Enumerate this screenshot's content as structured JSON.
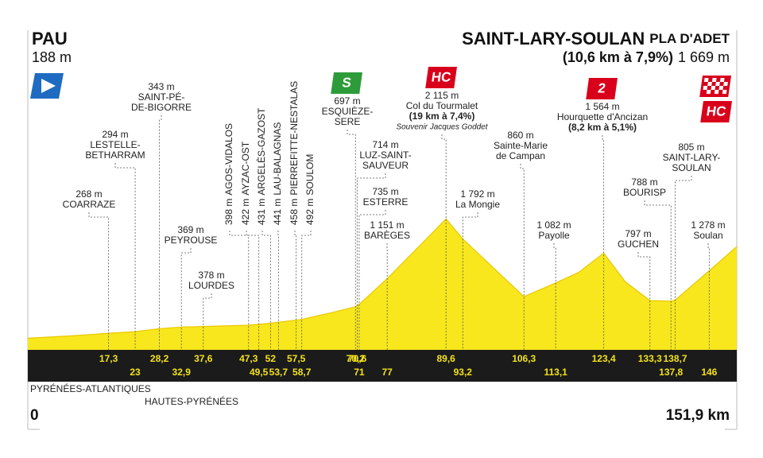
{
  "chart_data": {
    "type": "area",
    "color": "#f8e71c",
    "start": {
      "name": "PAU",
      "altitude": 188,
      "altitude_label": "188 m"
    },
    "finish": {
      "name": "SAINT-LARY-SOULAN",
      "place": "PLA D'ADET",
      "climb": "(10,6 km à 7,9%)",
      "altitude": 1669,
      "altitude_label": "1 669 m",
      "badge": "HC"
    },
    "start_km": {
      "value": 0,
      "label": "0"
    },
    "distance": {
      "value": 151.9,
      "label": "151,9 km"
    },
    "departments": [
      "PYRÉNÉES-ATLANTIQUES",
      "HAUTES-PYRÉNÉES"
    ],
    "profile": {
      "x": [
        0,
        10,
        17.3,
        23,
        28.2,
        32.9,
        37.6,
        47.3,
        52,
        58.7,
        65,
        70.2,
        71,
        77,
        89.6,
        93.2,
        106.3,
        113.1,
        118,
        123.4,
        128,
        133.3,
        137.8,
        138.7,
        146,
        151.9
      ],
      "values": [
        188,
        230,
        268,
        294,
        343,
        369,
        378,
        398,
        431,
        492,
        600,
        697,
        735,
        1151,
        2115,
        1792,
        860,
        1082,
        1250,
        1564,
        1100,
        797,
        788,
        805,
        1278,
        1669
      ]
    },
    "waypoints": [
      {
        "name": [
          "COARRAZE"
        ],
        "altitude": 268,
        "altitude_label": "268 m",
        "km": 17.3,
        "km_label": "17,3"
      },
      {
        "name": [
          "LESTELLE-",
          "BETHARRAM"
        ],
        "altitude": 294,
        "altitude_label": "294 m",
        "km": 23,
        "km_label": "23"
      },
      {
        "name": [
          "SAINT-PÉ-",
          "DE-BIGORRE"
        ],
        "altitude": 343,
        "altitude_label": "343 m",
        "km": 28.2,
        "km_label": "28,2"
      },
      {
        "name": [
          "PEYROUSE"
        ],
        "altitude": 369,
        "altitude_label": "369 m",
        "km": 32.9,
        "km_label": "32,9"
      },
      {
        "name": [
          "LOURDES"
        ],
        "altitude": 378,
        "altitude_label": "378 m",
        "km": 37.6,
        "km_label": "37,6"
      },
      {
        "name": [
          "AGOS-VIDALOS"
        ],
        "altitude": 398,
        "altitude_label": "398 m",
        "km": 47.3,
        "km_label": "47,3"
      },
      {
        "name": [
          "AYZAC-OST"
        ],
        "altitude": 422,
        "altitude_label": "422 m",
        "km": 49.5,
        "km_label": "49,5"
      },
      {
        "name": [
          "ARGELÈS-GAZOST"
        ],
        "altitude": 431,
        "altitude_label": "431 m",
        "km": 52,
        "km_label": "52"
      },
      {
        "name": [
          "LAU-BALAGNAS"
        ],
        "altitude": 441,
        "altitude_label": "441 m",
        "km": 53.7,
        "km_label": "53,7"
      },
      {
        "name": [
          "PIERREFITTE-NESTALAS"
        ],
        "altitude": 458,
        "altitude_label": "458 m",
        "km": 57.5,
        "km_label": "57,5"
      },
      {
        "name": [
          "SOULOM"
        ],
        "altitude": 492,
        "altitude_label": "492 m",
        "km": 58.7,
        "km_label": "58,7"
      },
      {
        "name": [
          "ESQUIÈZE-",
          "SERE"
        ],
        "altitude": 697,
        "altitude_label": "697 m",
        "km": 70.2,
        "km_label": "70,2",
        "badge": "S"
      },
      {
        "name": [
          "LUZ-SAINT-",
          "SAUVEUR"
        ],
        "altitude": 714,
        "altitude_label": "714 m",
        "km": 70.6,
        "km_label": "70,6"
      },
      {
        "name": [
          "ESTERRE"
        ],
        "altitude": 735,
        "altitude_label": "735 m",
        "km": 71,
        "km_label": "71"
      },
      {
        "name": [
          "BARÈGES"
        ],
        "altitude": 1151,
        "altitude_label": "1 151 m",
        "km": 77,
        "km_label": "77"
      },
      {
        "name": [
          "Col du Tourmalet"
        ],
        "altitude": 2115,
        "altitude_label": "2 115 m",
        "km": 89.6,
        "km_label": "89,6",
        "climb": "(19 km à 7,4%)",
        "note": "Souvenir Jacques Goddet",
        "badge": "HC"
      },
      {
        "name": [
          "La Mongie"
        ],
        "altitude": 1792,
        "altitude_label": "1 792 m",
        "km": 93.2,
        "km_label": "93,2"
      },
      {
        "name": [
          "Sainte-Marie",
          "de Campan"
        ],
        "altitude": 860,
        "altitude_label": "860 m",
        "km": 106.3,
        "km_label": "106,3"
      },
      {
        "name": [
          "Payolle"
        ],
        "altitude": 1082,
        "altitude_label": "1 082 m",
        "km": 113.1,
        "km_label": "113,1"
      },
      {
        "name": [
          "Hourquette d'Ancizan"
        ],
        "altitude": 1564,
        "altitude_label": "1 564 m",
        "km": 123.4,
        "km_label": "123,4",
        "climb": "(8,2 km à 5,1%)",
        "badge": "2"
      },
      {
        "name": [
          "GUCHEN"
        ],
        "altitude": 797,
        "altitude_label": "797 m",
        "km": 133.3,
        "km_label": "133,3"
      },
      {
        "name": [
          "BOURISP"
        ],
        "altitude": 788,
        "altitude_label": "788 m",
        "km": 137.8,
        "km_label": "137,8"
      },
      {
        "name": [
          "SAINT-LARY-",
          "SOULAN"
        ],
        "altitude": 805,
        "altitude_label": "805 m",
        "km": 138.7,
        "km_label": "138,7"
      },
      {
        "name": [
          "Soulan"
        ],
        "altitude": 1278,
        "altitude_label": "1 278 m",
        "km": 146,
        "km_label": "146"
      }
    ]
  }
}
